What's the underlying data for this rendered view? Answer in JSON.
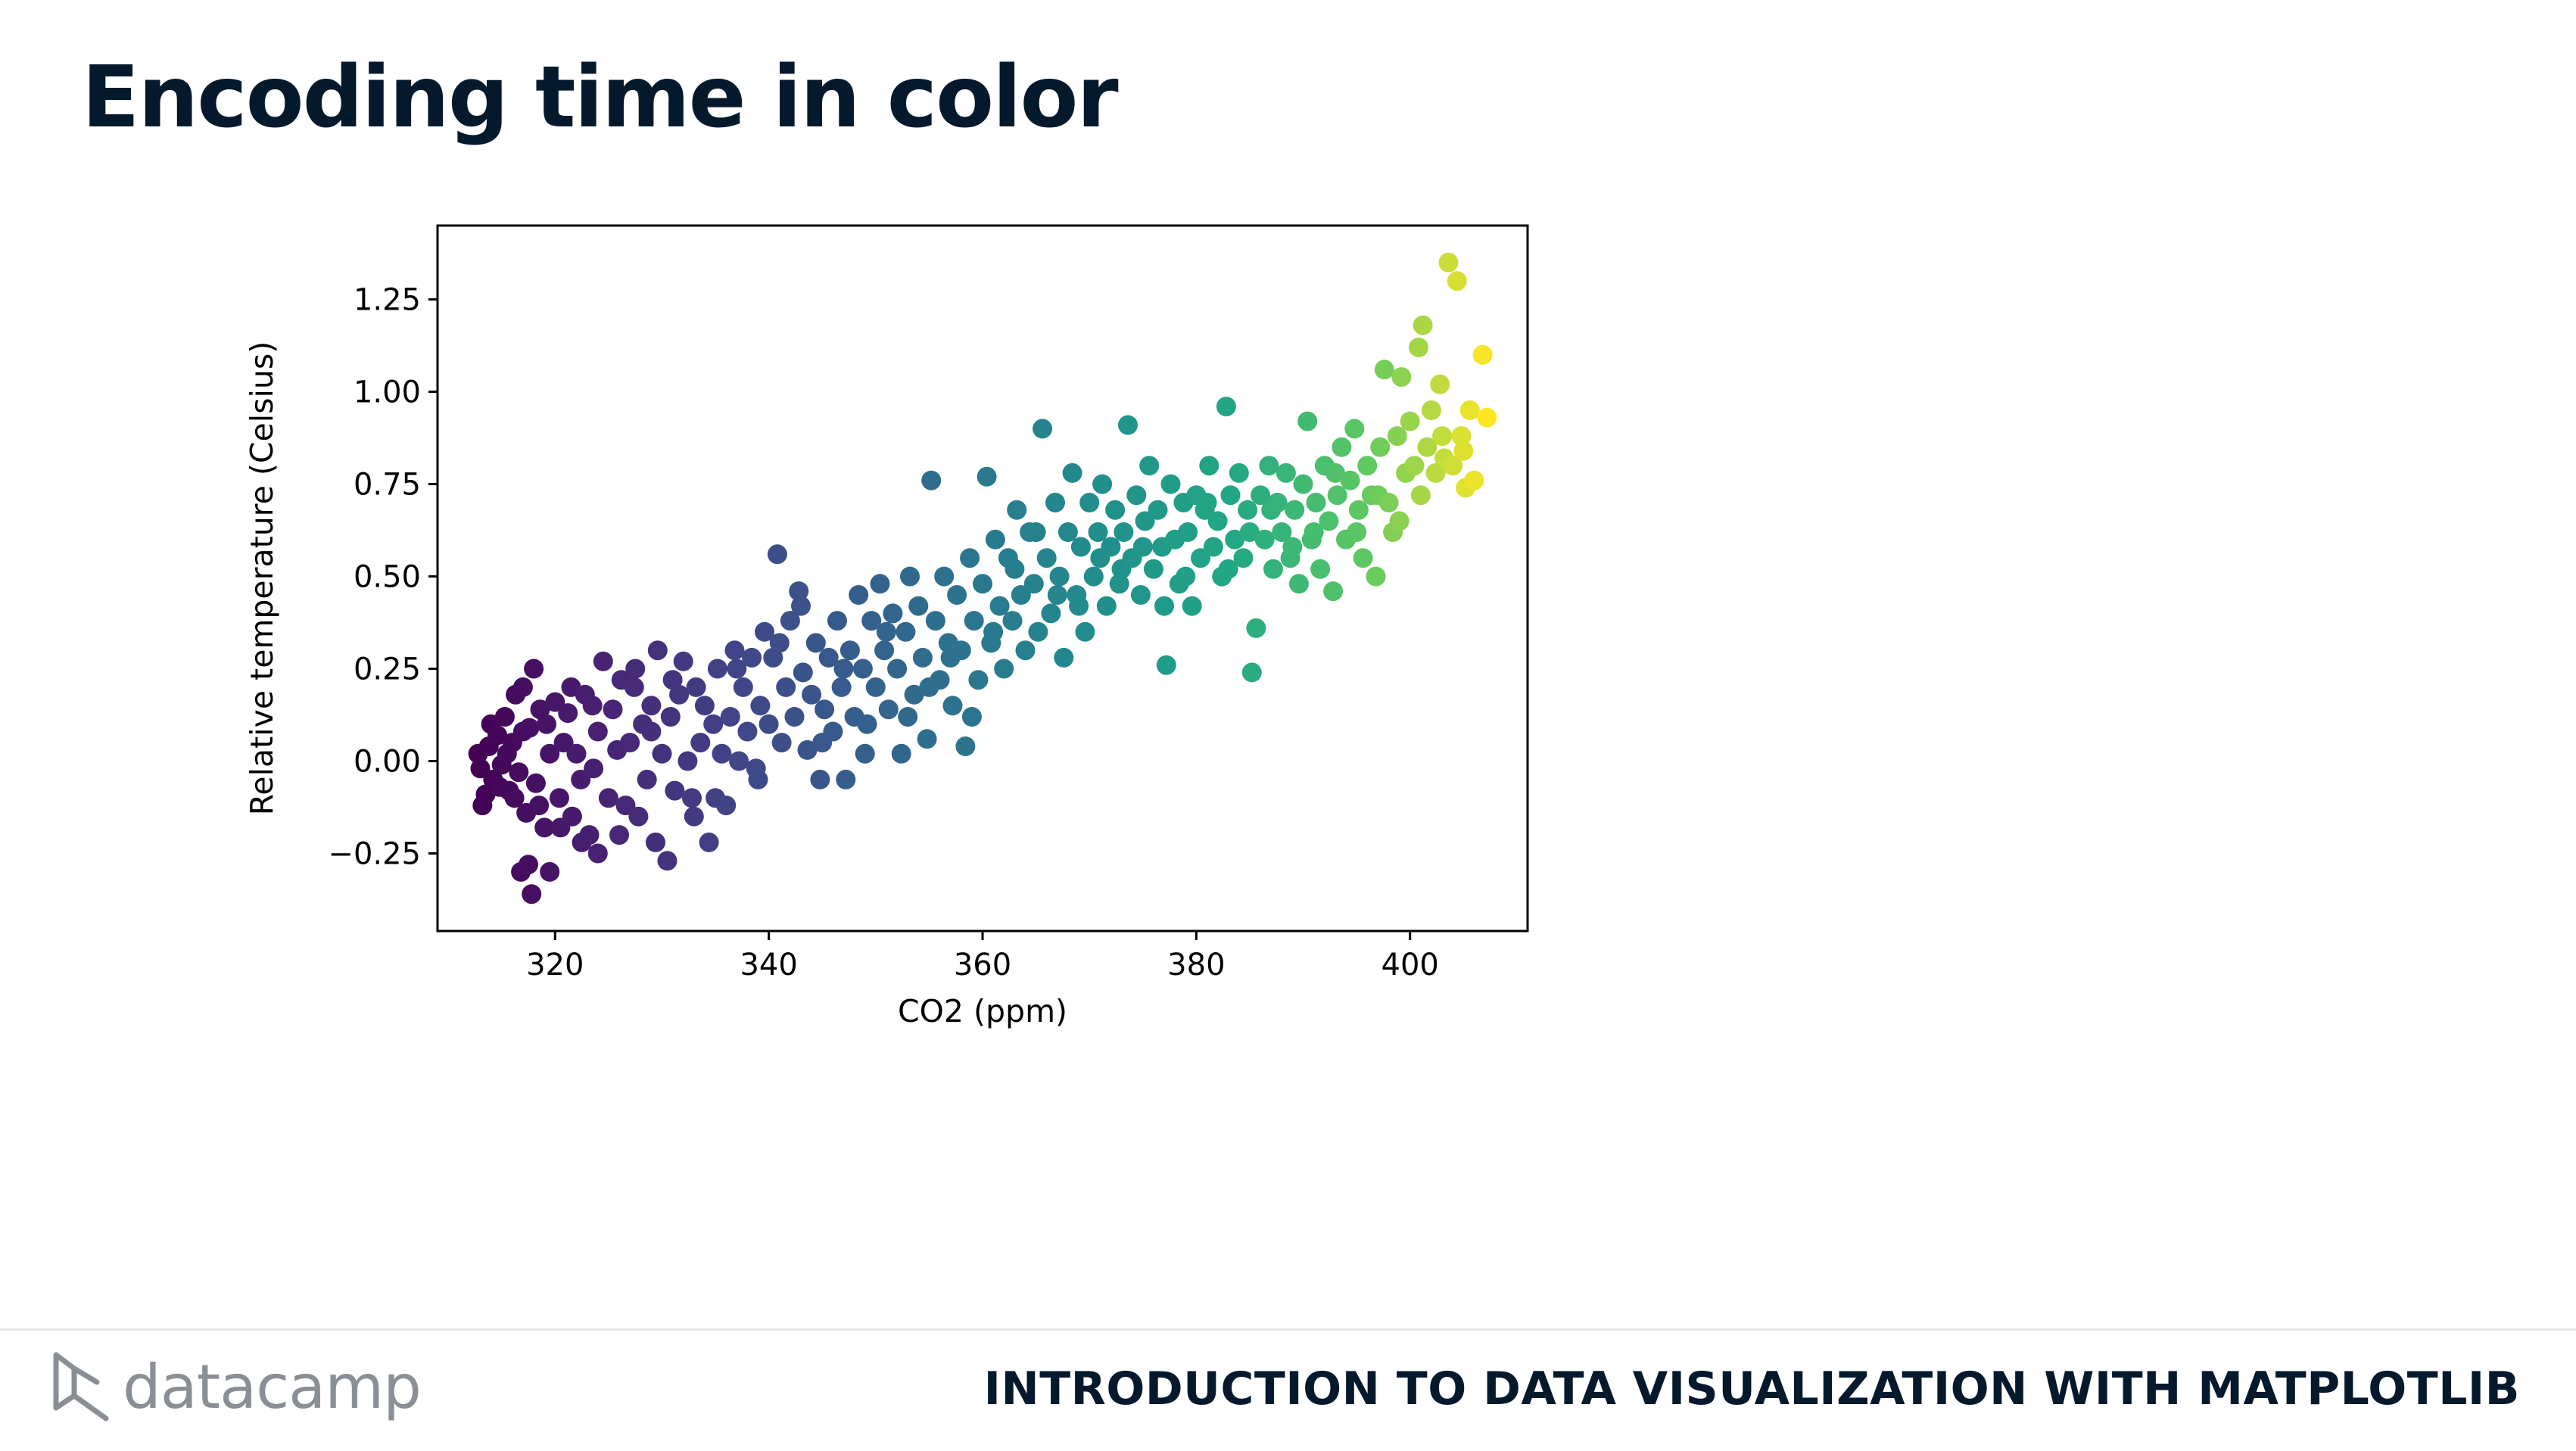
{
  "slide": {
    "title": "Encoding time in color"
  },
  "footer": {
    "logo_text": "datacamp",
    "logo_icon": "datacamp-logo-icon",
    "course_title": "INTRODUCTION TO DATA VISUALIZATION WITH MATPLOTLIB"
  },
  "colors": {
    "title": "#05192D",
    "footer_line": "#E5E5E5",
    "logo_gray": "#8A8F96",
    "axis": "#000000"
  },
  "chart_data": {
    "type": "scatter",
    "title": "",
    "xlabel": "CO2 (ppm)",
    "ylabel": "Relative temperature (Celsius)",
    "xlim": [
      309,
      411
    ],
    "ylim": [
      -0.46,
      1.45
    ],
    "xticks": [
      320,
      340,
      360,
      380,
      400
    ],
    "yticks": [
      -0.25,
      0.0,
      0.25,
      0.5,
      0.75,
      1.0,
      1.25
    ],
    "xtick_labels": [
      "320",
      "340",
      "360",
      "380",
      "400"
    ],
    "ytick_labels": [
      "−0.25",
      "0.00",
      "0.25",
      "0.50",
      "0.75",
      "1.00",
      "1.25"
    ],
    "colormap": "viridis",
    "color_encodes": "time",
    "grid": false,
    "legend": "none",
    "points": [
      [
        313.0,
        -0.02
      ],
      [
        313.5,
        -0.09
      ],
      [
        313.8,
        0.04
      ],
      [
        314.2,
        -0.05
      ],
      [
        314.6,
        0.07
      ],
      [
        315.0,
        -0.01
      ],
      [
        315.3,
        0.12
      ],
      [
        315.7,
        -0.08
      ],
      [
        316.0,
        0.05
      ],
      [
        316.3,
        0.18
      ],
      [
        316.6,
        -0.03
      ],
      [
        317.0,
        0.2
      ],
      [
        317.3,
        -0.14
      ],
      [
        317.6,
        0.09
      ],
      [
        318.0,
        0.25
      ],
      [
        318.2,
        -0.06
      ],
      [
        318.6,
        0.14
      ],
      [
        317.5,
        -0.28
      ],
      [
        316.8,
        -0.3
      ],
      [
        317.8,
        -0.36
      ],
      [
        319.5,
        -0.3
      ],
      [
        319.0,
        -0.18
      ],
      [
        319.5,
        0.02
      ],
      [
        320.0,
        0.16
      ],
      [
        320.4,
        -0.1
      ],
      [
        320.8,
        0.05
      ],
      [
        321.2,
        0.13
      ],
      [
        321.6,
        -0.15
      ],
      [
        322.0,
        0.02
      ],
      [
        322.4,
        -0.05
      ],
      [
        322.8,
        0.18
      ],
      [
        323.2,
        -0.2
      ],
      [
        323.6,
        -0.02
      ],
      [
        324.0,
        0.08
      ],
      [
        324.0,
        -0.25
      ],
      [
        324.5,
        0.27
      ],
      [
        325.0,
        -0.1
      ],
      [
        325.4,
        0.14
      ],
      [
        325.8,
        0.03
      ],
      [
        326.2,
        0.22
      ],
      [
        326.6,
        -0.12
      ],
      [
        327.0,
        0.05
      ],
      [
        327.4,
        0.2
      ],
      [
        327.8,
        -0.15
      ],
      [
        328.2,
        0.1
      ],
      [
        328.6,
        -0.05
      ],
      [
        329.0,
        0.15
      ],
      [
        329.4,
        -0.22
      ],
      [
        329.6,
        0.3
      ],
      [
        330.0,
        0.02
      ],
      [
        330.5,
        -0.27
      ],
      [
        330.8,
        0.12
      ],
      [
        331.2,
        -0.08
      ],
      [
        331.6,
        0.18
      ],
      [
        332.0,
        0.27
      ],
      [
        332.4,
        0.0
      ],
      [
        332.8,
        -0.1
      ],
      [
        333.2,
        0.2
      ],
      [
        333.6,
        0.05
      ],
      [
        334.0,
        0.15
      ],
      [
        334.4,
        -0.22
      ],
      [
        334.8,
        0.1
      ],
      [
        335.2,
        0.25
      ],
      [
        335.6,
        0.02
      ],
      [
        336.0,
        -0.12
      ],
      [
        336.4,
        0.12
      ],
      [
        336.8,
        0.3
      ],
      [
        337.2,
        0.0
      ],
      [
        337.6,
        0.2
      ],
      [
        338.0,
        0.08
      ],
      [
        338.4,
        0.28
      ],
      [
        338.8,
        -0.02
      ],
      [
        339.2,
        0.15
      ],
      [
        339.6,
        0.35
      ],
      [
        340.0,
        0.1
      ],
      [
        340.4,
        0.28
      ],
      [
        340.8,
        0.56
      ],
      [
        341.2,
        0.05
      ],
      [
        341.6,
        0.2
      ],
      [
        342.0,
        0.38
      ],
      [
        342.4,
        0.12
      ],
      [
        342.8,
        0.46
      ],
      [
        343.2,
        0.24
      ],
      [
        343.6,
        0.03
      ],
      [
        344.0,
        0.18
      ],
      [
        344.4,
        0.32
      ],
      [
        344.8,
        -0.05
      ],
      [
        345.2,
        0.14
      ],
      [
        345.6,
        0.28
      ],
      [
        346.0,
        0.08
      ],
      [
        346.4,
        0.38
      ],
      [
        346.8,
        0.2
      ],
      [
        347.2,
        -0.05
      ],
      [
        347.6,
        0.3
      ],
      [
        348.0,
        0.12
      ],
      [
        348.4,
        0.45
      ],
      [
        348.8,
        0.25
      ],
      [
        349.2,
        0.1
      ],
      [
        349.6,
        0.38
      ],
      [
        350.0,
        0.2
      ],
      [
        350.4,
        0.48
      ],
      [
        350.8,
        0.3
      ],
      [
        351.2,
        0.14
      ],
      [
        351.6,
        0.4
      ],
      [
        352.0,
        0.25
      ],
      [
        352.4,
        0.02
      ],
      [
        352.8,
        0.35
      ],
      [
        353.2,
        0.5
      ],
      [
        353.6,
        0.18
      ],
      [
        354.0,
        0.42
      ],
      [
        354.4,
        0.28
      ],
      [
        354.8,
        0.06
      ],
      [
        355.2,
        0.76
      ],
      [
        355.6,
        0.38
      ],
      [
        356.0,
        0.22
      ],
      [
        356.4,
        0.5
      ],
      [
        356.8,
        0.32
      ],
      [
        357.2,
        0.15
      ],
      [
        357.6,
        0.45
      ],
      [
        358.0,
        0.3
      ],
      [
        358.4,
        0.04
      ],
      [
        358.8,
        0.55
      ],
      [
        359.2,
        0.38
      ],
      [
        359.6,
        0.22
      ],
      [
        360.0,
        0.48
      ],
      [
        360.4,
        0.77
      ],
      [
        360.8,
        0.32
      ],
      [
        361.2,
        0.6
      ],
      [
        361.6,
        0.42
      ],
      [
        362.0,
        0.25
      ],
      [
        362.4,
        0.55
      ],
      [
        362.8,
        0.38
      ],
      [
        363.2,
        0.68
      ],
      [
        363.6,
        0.45
      ],
      [
        364.0,
        0.3
      ],
      [
        364.4,
        0.62
      ],
      [
        364.8,
        0.48
      ],
      [
        365.2,
        0.35
      ],
      [
        365.6,
        0.9
      ],
      [
        366.0,
        0.55
      ],
      [
        366.4,
        0.4
      ],
      [
        366.8,
        0.7
      ],
      [
        367.2,
        0.5
      ],
      [
        367.6,
        0.28
      ],
      [
        368.0,
        0.62
      ],
      [
        368.4,
        0.78
      ],
      [
        368.8,
        0.45
      ],
      [
        369.2,
        0.58
      ],
      [
        369.6,
        0.35
      ],
      [
        370.0,
        0.7
      ],
      [
        370.4,
        0.5
      ],
      [
        370.8,
        0.62
      ],
      [
        371.2,
        0.75
      ],
      [
        371.6,
        0.42
      ],
      [
        372.0,
        0.58
      ],
      [
        372.4,
        0.68
      ],
      [
        372.8,
        0.48
      ],
      [
        373.2,
        0.62
      ],
      [
        373.6,
        0.91
      ],
      [
        374.0,
        0.55
      ],
      [
        374.4,
        0.72
      ],
      [
        374.8,
        0.45
      ],
      [
        375.2,
        0.65
      ],
      [
        375.6,
        0.8
      ],
      [
        376.0,
        0.52
      ],
      [
        376.4,
        0.68
      ],
      [
        376.8,
        0.58
      ],
      [
        377.2,
        0.26
      ],
      [
        377.6,
        0.75
      ],
      [
        378.0,
        0.6
      ],
      [
        378.4,
        0.48
      ],
      [
        378.8,
        0.7
      ],
      [
        379.2,
        0.62
      ],
      [
        379.6,
        0.42
      ],
      [
        380.0,
        0.72
      ],
      [
        380.4,
        0.55
      ],
      [
        380.8,
        0.68
      ],
      [
        381.2,
        0.8
      ],
      [
        381.6,
        0.58
      ],
      [
        382.0,
        0.65
      ],
      [
        382.4,
        0.5
      ],
      [
        382.8,
        0.96
      ],
      [
        383.2,
        0.72
      ],
      [
        383.6,
        0.6
      ],
      [
        384.0,
        0.78
      ],
      [
        384.4,
        0.55
      ],
      [
        384.8,
        0.68
      ],
      [
        385.2,
        0.24
      ],
      [
        385.6,
        0.36
      ],
      [
        386.0,
        0.72
      ],
      [
        386.4,
        0.6
      ],
      [
        386.8,
        0.8
      ],
      [
        387.2,
        0.52
      ],
      [
        387.6,
        0.7
      ],
      [
        388.0,
        0.62
      ],
      [
        388.4,
        0.78
      ],
      [
        388.8,
        0.55
      ],
      [
        389.2,
        0.68
      ],
      [
        389.6,
        0.48
      ],
      [
        390.0,
        0.75
      ],
      [
        390.4,
        0.92
      ],
      [
        390.8,
        0.6
      ],
      [
        391.2,
        0.7
      ],
      [
        391.6,
        0.52
      ],
      [
        392.0,
        0.8
      ],
      [
        392.4,
        0.65
      ],
      [
        392.8,
        0.46
      ],
      [
        393.2,
        0.72
      ],
      [
        393.6,
        0.85
      ],
      [
        394.0,
        0.6
      ],
      [
        394.4,
        0.76
      ],
      [
        394.8,
        0.9
      ],
      [
        395.2,
        0.68
      ],
      [
        395.6,
        0.55
      ],
      [
        396.0,
        0.8
      ],
      [
        396.4,
        0.72
      ],
      [
        396.8,
        0.5
      ],
      [
        397.2,
        0.85
      ],
      [
        397.6,
        1.06
      ],
      [
        398.0,
        0.7
      ],
      [
        398.4,
        0.62
      ],
      [
        398.8,
        0.88
      ],
      [
        399.2,
        1.04
      ],
      [
        399.6,
        0.78
      ],
      [
        400.0,
        0.92
      ],
      [
        400.4,
        0.8
      ],
      [
        400.8,
        1.12
      ],
      [
        401.2,
        1.18
      ],
      [
        401.6,
        0.85
      ],
      [
        402.0,
        0.95
      ],
      [
        402.4,
        0.78
      ],
      [
        402.8,
        1.02
      ],
      [
        403.2,
        0.82
      ],
      [
        403.6,
        1.35
      ],
      [
        404.0,
        0.8
      ],
      [
        404.4,
        1.3
      ],
      [
        404.8,
        0.88
      ],
      [
        405.2,
        0.74
      ],
      [
        405.6,
        0.95
      ],
      [
        406.0,
        0.76
      ],
      [
        406.8,
        1.1
      ],
      [
        407.2,
        0.93
      ],
      [
        312.8,
        0.02
      ],
      [
        313.2,
        -0.12
      ],
      [
        314.0,
        0.1
      ],
      [
        314.8,
        -0.07
      ],
      [
        315.5,
        0.02
      ],
      [
        316.2,
        -0.1
      ],
      [
        317.0,
        0.08
      ],
      [
        318.5,
        -0.12
      ],
      [
        319.2,
        0.1
      ],
      [
        320.5,
        -0.18
      ],
      [
        321.5,
        0.2
      ],
      [
        322.5,
        -0.22
      ],
      [
        323.5,
        0.15
      ],
      [
        326.0,
        -0.2
      ],
      [
        327.5,
        0.25
      ],
      [
        329.0,
        0.08
      ],
      [
        331.0,
        0.22
      ],
      [
        333.0,
        -0.15
      ],
      [
        335.0,
        -0.1
      ],
      [
        337.0,
        0.25
      ],
      [
        339.0,
        -0.05
      ],
      [
        341.0,
        0.32
      ],
      [
        343.0,
        0.42
      ],
      [
        345.0,
        0.05
      ],
      [
        347.0,
        0.25
      ],
      [
        349.0,
        0.02
      ],
      [
        351.0,
        0.35
      ],
      [
        353.0,
        0.12
      ],
      [
        355.0,
        0.2
      ],
      [
        357.0,
        0.28
      ],
      [
        359.0,
        0.12
      ],
      [
        361.0,
        0.35
      ],
      [
        363.0,
        0.52
      ],
      [
        365.0,
        0.62
      ],
      [
        367.0,
        0.45
      ],
      [
        369.0,
        0.42
      ],
      [
        371.0,
        0.55
      ],
      [
        373.0,
        0.52
      ],
      [
        375.0,
        0.58
      ],
      [
        377.0,
        0.42
      ],
      [
        379.0,
        0.5
      ],
      [
        381.0,
        0.7
      ],
      [
        383.0,
        0.52
      ],
      [
        385.0,
        0.62
      ],
      [
        387.0,
        0.68
      ],
      [
        389.0,
        0.58
      ],
      [
        391.0,
        0.62
      ],
      [
        393.0,
        0.78
      ],
      [
        395.0,
        0.62
      ],
      [
        397.0,
        0.72
      ],
      [
        399.0,
        0.65
      ],
      [
        401.0,
        0.72
      ],
      [
        403.0,
        0.88
      ],
      [
        405.0,
        0.84
      ]
    ]
  }
}
